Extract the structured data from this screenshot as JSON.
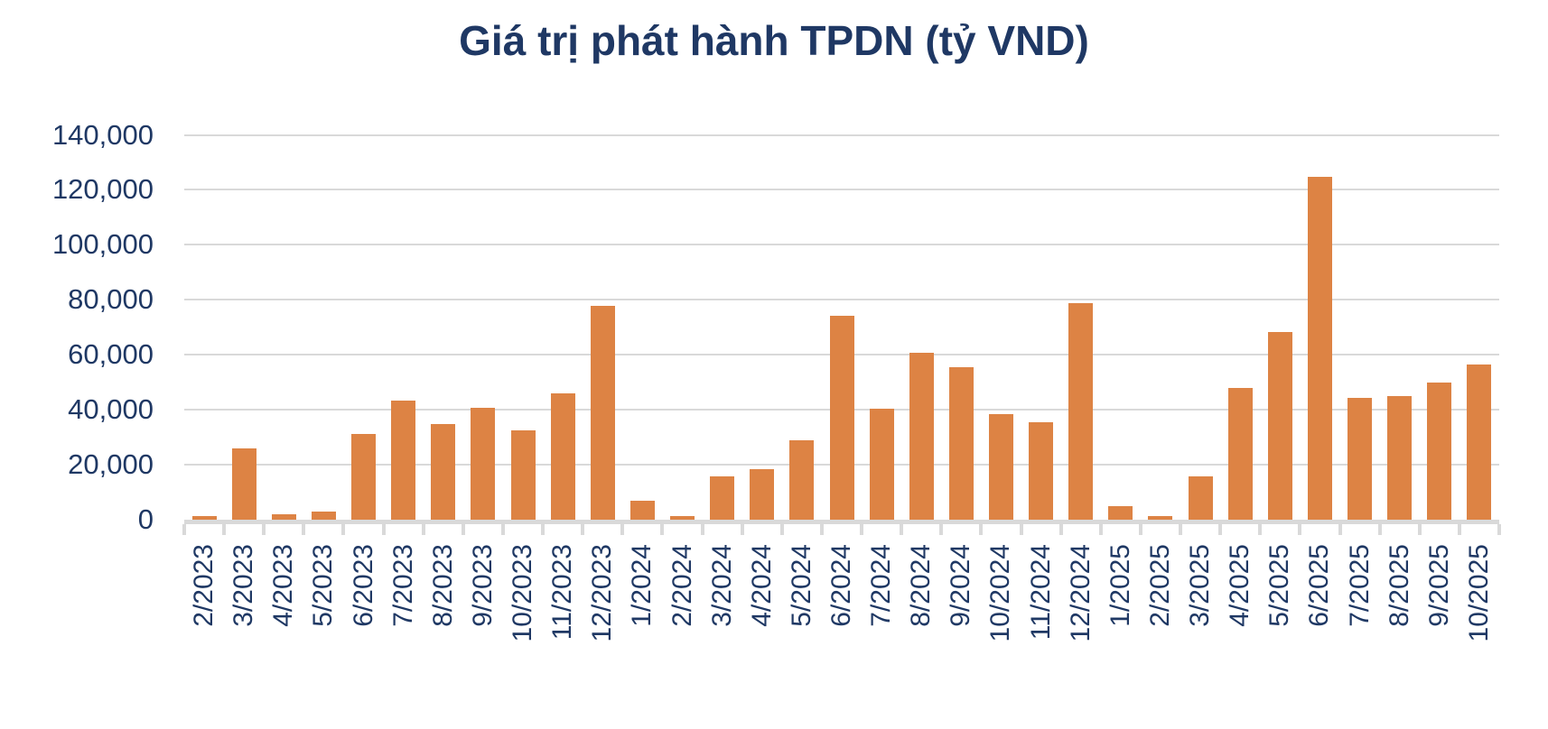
{
  "title": "Giá trị phát hành TPDN (tỷ VND)",
  "colors": {
    "bar": "#DD8344",
    "text": "#1F3864",
    "gridline": "#D9D9D9",
    "axis": "#D9D9D9"
  },
  "chart_data": {
    "type": "bar",
    "title": "Giá trị phát hành TPDN (tỷ VND)",
    "xlabel": "",
    "ylabel": "",
    "ylim": [
      0,
      140000
    ],
    "ytick_interval": 20000,
    "ytick_labels": [
      "0",
      "20,000",
      "40,000",
      "60,000",
      "80,000",
      "100,000",
      "120,000",
      "140,000"
    ],
    "grid": true,
    "legend": false,
    "categories": [
      "2/2023",
      "3/2023",
      "4/2023",
      "5/2023",
      "6/2023",
      "7/2023",
      "8/2023",
      "9/2023",
      "10/2023",
      "11/2023",
      "12/2023",
      "1/2024",
      "2/2024",
      "3/2024",
      "4/2024",
      "5/2024",
      "6/2024",
      "7/2024",
      "8/2024",
      "9/2024",
      "10/2024",
      "11/2024",
      "12/2024",
      "1/2025",
      "2/2025",
      "3/2025",
      "4/2025",
      "5/2025",
      "6/2025",
      "7/2025",
      "8/2025",
      "9/2025",
      "10/2025"
    ],
    "values": [
      2000,
      26500,
      2500,
      3500,
      32000,
      44000,
      35500,
      41500,
      33000,
      46500,
      78500,
      7500,
      2000,
      16500,
      19000,
      29500,
      75000,
      41000,
      61500,
      56000,
      39000,
      36000,
      79500,
      5500,
      2000,
      16500,
      48500,
      69000,
      125500,
      45000,
      45500,
      50500,
      57000
    ]
  }
}
